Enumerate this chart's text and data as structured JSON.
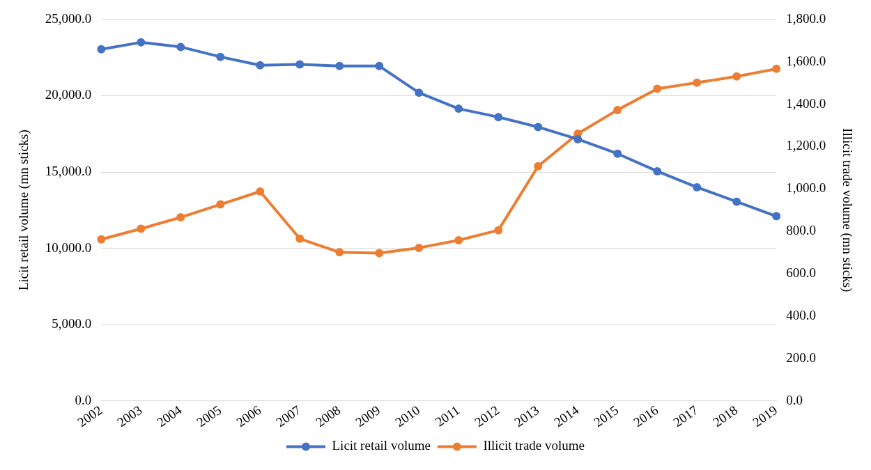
{
  "chart_data": {
    "type": "line",
    "ylabel": "Licit retail volume (mn sticks)",
    "y2label": "Illicit trade volume (mn sticks)",
    "categories": [
      "2002",
      "2003",
      "2004",
      "2005",
      "2006",
      "2007",
      "2008",
      "2009",
      "2010",
      "2011",
      "2012",
      "2013",
      "2014",
      "2015",
      "2016",
      "2017",
      "2018",
      "2019"
    ],
    "series": [
      {
        "name": "Licit retail volume",
        "color": "#4472c4",
        "values": [
          23050,
          23500,
          23200,
          22550,
          22000,
          22050,
          21950,
          21950,
          20200,
          19150,
          18600,
          17950,
          17150,
          16200,
          15050,
          14000,
          13050,
          12100
        ]
      },
      {
        "name": "Illicit trade volume",
        "color": "#ed7d31",
        "axis": "y2",
        "values": [
          762,
          812,
          866,
          927,
          988,
          765,
          701,
          697,
          722,
          758,
          805,
          1107,
          1261,
          1373,
          1473,
          1502,
          1531,
          1567
        ]
      }
    ],
    "ylim": [
      0,
      25000
    ],
    "yticks": [
      {
        "value": 0,
        "label": "0.0"
      },
      {
        "value": 5000,
        "label": "5,000.0"
      },
      {
        "value": 10000,
        "label": "10,000.0"
      },
      {
        "value": 15000,
        "label": "15,000.0"
      },
      {
        "value": 20000,
        "label": "20,000.0"
      },
      {
        "value": 25000,
        "label": "25,000.0"
      }
    ],
    "y2lim": [
      0,
      1800
    ],
    "y2ticks": [
      {
        "value": 0,
        "label": "0.0"
      },
      {
        "value": 200,
        "label": "200.0"
      },
      {
        "value": 400,
        "label": "400.0"
      },
      {
        "value": 600,
        "label": "600.0"
      },
      {
        "value": 800,
        "label": "800.0"
      },
      {
        "value": 1000,
        "label": "1,000.0"
      },
      {
        "value": 1200,
        "label": "1,200.0"
      },
      {
        "value": 1400,
        "label": "1,400.0"
      },
      {
        "value": 1600,
        "label": "1,600.0"
      },
      {
        "value": 1800,
        "label": "1,800.0"
      }
    ],
    "grid": "y",
    "legend": "bottom",
    "marker": "circle",
    "line_style": "solid"
  }
}
